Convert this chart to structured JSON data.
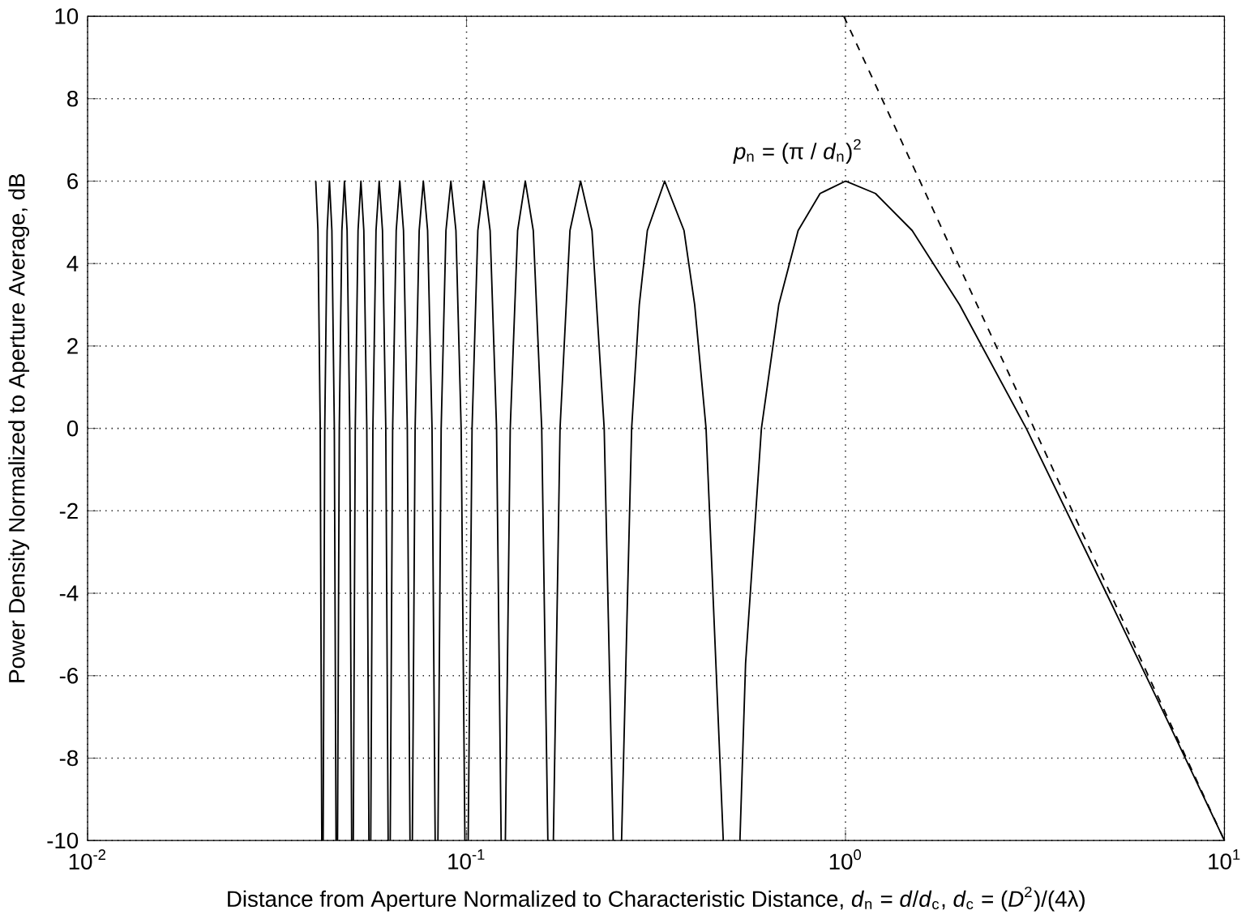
{
  "chart_data": {
    "type": "line",
    "xlabel": "Distance from Aperture Normalized to Characteristic Distance, *d*$_{n}$ = *d*/*d*$_{c}$, *d*$_{c}$ = (*D*$^{2}$)/(4λ)",
    "ylabel": "Power Density Normalized to Aperture Average, dB",
    "log": "x",
    "grid": true,
    "xlim": [
      0.01,
      10
    ],
    "ylim": [
      -10,
      10
    ],
    "xticks": [
      {
        "value": 0.01,
        "label": "10$^{-2}$"
      },
      {
        "value": 0.1,
        "label": "10$^{-1}$"
      },
      {
        "value": 1,
        "label": "10$^{0}$"
      },
      {
        "value": 10,
        "label": "10$^{1}$"
      }
    ],
    "yticks": [
      -10,
      -8,
      -6,
      -4,
      -2,
      0,
      2,
      4,
      6,
      8,
      10
    ],
    "annotations": [
      "*p*$_{n}$ = (π / *d*$_{n}$)$^{2}$"
    ],
    "series": [
      {
        "color": "#000000",
        "line_style": "solid",
        "x": [
          0.04,
          0.04054,
          0.0411,
          0.04149,
          0.04166,
          0.04184,
          0.04225,
          0.04286,
          0.04348,
          0.04412,
          0.04478,
          0.04525,
          0.04545,
          0.04566,
          0.04615,
          0.04688,
          0.04762,
          0.04839,
          0.04918,
          0.04975,
          0.05,
          0.05025,
          0.05085,
          0.05172,
          0.05263,
          0.05357,
          0.05455,
          0.05525,
          0.05555,
          0.05587,
          0.0566,
          0.05769,
          0.05882,
          0.06,
          0.06122,
          0.06211,
          0.0625,
          0.0629,
          0.06383,
          0.06522,
          0.06667,
          0.06818,
          0.06977,
          0.07092,
          0.07143,
          0.07195,
          0.07317,
          0.075,
          0.07692,
          0.07895,
          0.08108,
          0.08264,
          0.08333,
          0.08404,
          0.08571,
          0.08824,
          0.09091,
          0.09375,
          0.09677,
          0.099,
          0.1,
          0.101,
          0.1034,
          0.1071,
          0.1111,
          0.1154,
          0.12,
          0.1234,
          0.125,
          0.1266,
          0.1304,
          0.1364,
          0.1429,
          0.15,
          0.1579,
          0.1639,
          0.1667,
          0.1695,
          0.1765,
          0.1875,
          0.2,
          0.2143,
          0.2308,
          0.2438,
          0.25,
          0.2565,
          0.2727,
          0.2857,
          0.3,
          0.3333,
          0.375,
          0.4,
          0.4286,
          0.4759,
          0.5,
          0.5266,
          0.545,
          0.6,
          0.6667,
          0.75,
          0.857,
          1.0,
          1.2,
          1.5,
          2,
          3,
          5,
          7,
          10
        ],
        "values": [
          6.0,
          4.8,
          0,
          -10,
          null,
          -10,
          0,
          4.8,
          6.0,
          4.8,
          0,
          -10,
          null,
          -10,
          0,
          4.8,
          6.0,
          4.8,
          0,
          -10,
          null,
          -10,
          0,
          4.8,
          6.0,
          4.8,
          0,
          -10,
          null,
          -10,
          0,
          4.8,
          6.0,
          4.8,
          0,
          -10,
          null,
          -10,
          0,
          4.8,
          6.0,
          4.8,
          0,
          -10,
          null,
          -10,
          0,
          4.8,
          6.0,
          4.8,
          0,
          -10,
          null,
          -10,
          0,
          4.8,
          6.0,
          4.8,
          0,
          -10,
          null,
          -10,
          0,
          4.8,
          6.0,
          4.8,
          0,
          -10,
          null,
          -10,
          0,
          4.8,
          6.0,
          4.8,
          0,
          -10,
          null,
          -10,
          0,
          4.8,
          6.0,
          4.8,
          0,
          -10,
          null,
          -10,
          0,
          3.0,
          4.8,
          6.0,
          4.8,
          3.0,
          0,
          -10,
          null,
          -10,
          -5.7,
          0,
          3.0,
          4.8,
          5.7,
          6.0,
          5.7,
          4.8,
          3.0,
          0,
          -4.2,
          -7.0,
          -10
        ]
      },
      {
        "color": "#000000",
        "line_style": "dashed",
        "x": [
          0.99,
          10
        ],
        "values": [
          10,
          -10
        ]
      }
    ]
  }
}
